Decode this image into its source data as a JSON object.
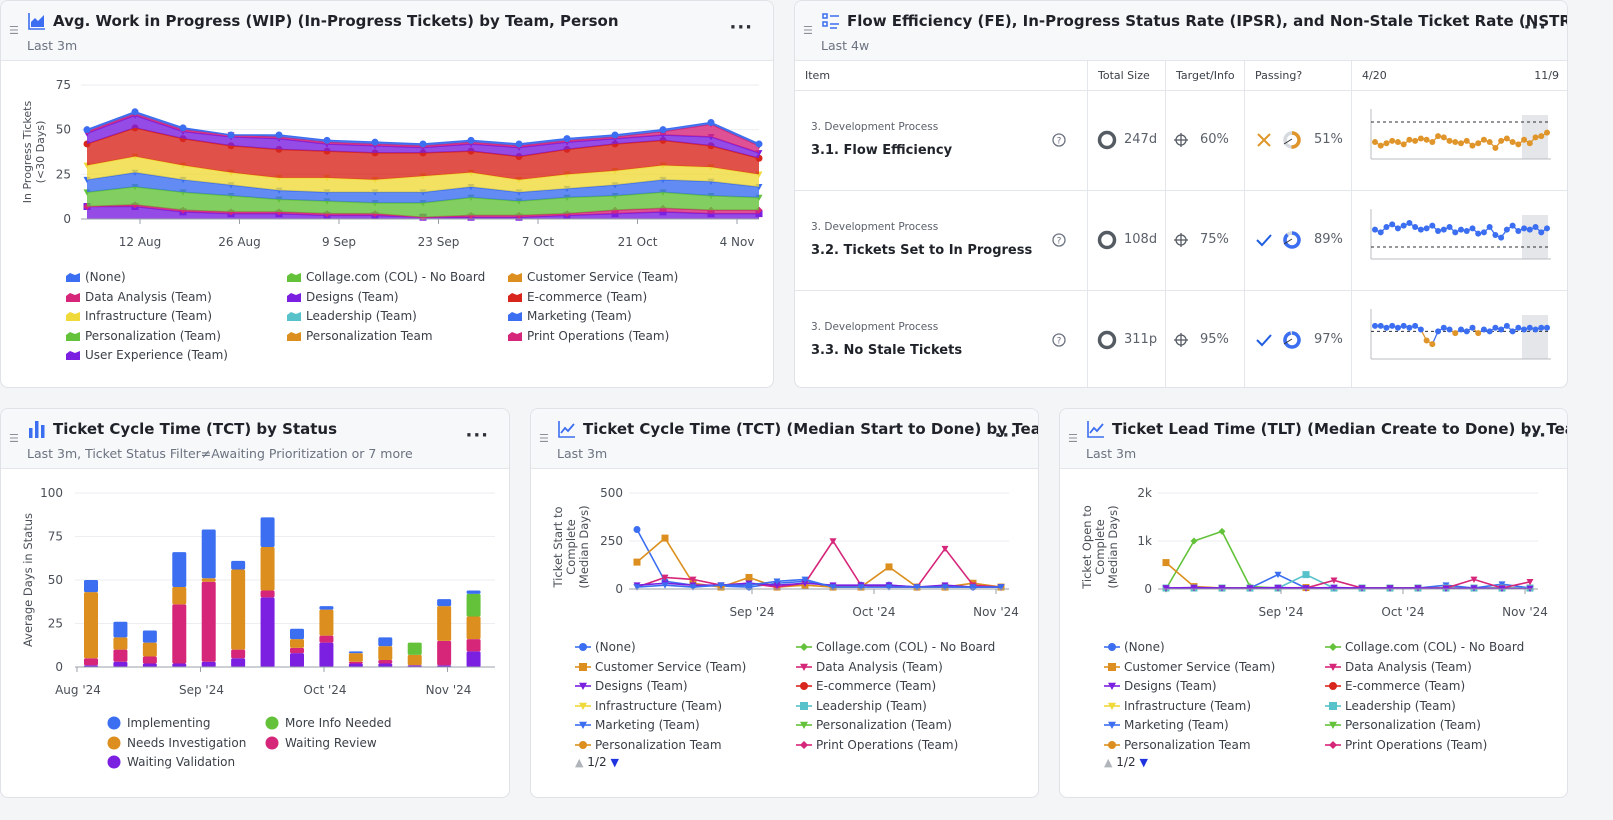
{
  "wip": {
    "title": "Avg. Work in Progress (WIP) (In-Progress Tickets) by Team, Person",
    "subtitle": "Last 3m",
    "legend": [
      "(None)",
      "Collage.com (COL) - No Board",
      "Customer Service (Team)",
      "Data Analysis (Team)",
      "Designs (Team)",
      "E-commerce (Team)",
      "Infrastructure (Team)",
      "Leadership (Team)",
      "Marketing (Team)",
      "Personalization (Team)",
      "Personalization Team",
      "Print Operations (Team)",
      "User Experience (Team)"
    ]
  },
  "scorecard": {
    "title": "Flow Efficiency (FE), In-Progress Status Rate (IPSR), and Non-Stale Ticket Rate (NSTR) Scorecard",
    "subtitle": "Last 4w",
    "headers": {
      "item": "Item",
      "total": "Total Size",
      "target": "Target/Info",
      "passing": "Passing?",
      "start": "4/20",
      "end": "11/9"
    },
    "rows": [
      {
        "category": "3. Development Process",
        "name": "3.1. Flow Efficiency",
        "total": "247d",
        "target": "60%",
        "passing": "51%",
        "pass": false,
        "color": "#e0952b"
      },
      {
        "category": "3. Development Process",
        "name": "3.2. Tickets Set to In Progress",
        "total": "108d",
        "target": "75%",
        "passing": "89%",
        "pass": true,
        "color": "#3b6ef0"
      },
      {
        "category": "3. Development Process",
        "name": "3.3. No Stale Tickets",
        "total": "311p",
        "target": "95%",
        "passing": "97%",
        "pass": true,
        "color": "#3b6ef0"
      }
    ]
  },
  "tct_status": {
    "title": "Ticket Cycle Time (TCT) by Status",
    "subtitle": "Last 3m, Ticket Status Filter≠Awaiting Prioritization or 7 more",
    "legend": [
      "Implementing",
      "More Info Needed",
      "Needs Investigation",
      "Waiting Review",
      "Waiting Validation"
    ]
  },
  "tct_team": {
    "title": "Ticket Cycle Time (TCT) (Median Start to Done) by Team",
    "subtitle": "Last 3m",
    "legend": [
      "(None)",
      "Collage.com (COL) - No Board",
      "Customer Service (Team)",
      "Data Analysis (Team)",
      "Designs (Team)",
      "E-commerce (Team)",
      "Infrastructure (Team)",
      "Leadership (Team)",
      "Marketing (Team)",
      "Personalization (Team)",
      "Personalization Team",
      "Print Operations (Team)"
    ],
    "pager": "1/2"
  },
  "tlt_team": {
    "title": "Ticket Lead Time (TLT) (Median Create to Done) by Team",
    "subtitle": "Last 3m",
    "legend": [
      "(None)",
      "Collage.com (COL) - No Board",
      "Customer Service (Team)",
      "Data Analysis (Team)",
      "Designs (Team)",
      "E-commerce (Team)",
      "Infrastructure (Team)",
      "Leadership (Team)",
      "Marketing (Team)",
      "Personalization (Team)",
      "Personalization Team",
      "Print Operations (Team)"
    ],
    "pager": "1/2"
  },
  "colors": {
    "(None)": "#3b6ef0",
    "Collage.com (COL) - No Board": "#63c23a",
    "Customer Service (Team)": "#dc8f1e",
    "Data Analysis (Team)": "#d6267a",
    "Designs (Team)": "#7b1fe0",
    "E-commerce (Team)": "#d8261c",
    "Infrastructure (Team)": "#f0d93a",
    "Leadership (Team)": "#57c2c9",
    "Marketing (Team)": "#3b6ef0",
    "Personalization (Team)": "#63c23a",
    "Personalization Team": "#dc8f1e",
    "Print Operations (Team)": "#d6267a",
    "User Experience (Team)": "#7b1fe0",
    "Implementing": "#3b6ef0",
    "More Info Needed": "#63c23a",
    "Needs Investigation": "#dc8f1e",
    "Waiting Review": "#d6267a",
    "Waiting Validation": "#7b1fe0"
  },
  "chart_data": [
    {
      "type": "area",
      "title": "Avg. Work in Progress (WIP) (In-Progress Tickets) by Team, Person",
      "ylabel": "In Progress Tickets (<30 Days)",
      "ylim": [
        0,
        75
      ],
      "yticks": [
        0,
        25,
        50,
        75
      ],
      "x": [
        "30 Jul",
        "6 Aug",
        "13 Aug",
        "20 Aug",
        "27 Aug",
        "3 Sep",
        "10 Sep",
        "17 Sep",
        "24 Sep",
        "1 Oct",
        "8 Oct",
        "15 Oct",
        "22 Oct",
        "29 Oct",
        "5 Nov"
      ],
      "xticks": [
        "12 Aug",
        "26 Aug",
        "9 Sep",
        "23 Sep",
        "7 Oct",
        "21 Oct",
        "4 Nov"
      ],
      "series": [
        {
          "name": "User Experience (Team)",
          "values": [
            7,
            7,
            4,
            3,
            3,
            2,
            2,
            1,
            1,
            1,
            2,
            3,
            4,
            3,
            3
          ]
        },
        {
          "name": "Print Operations (Team)",
          "values": [
            0,
            1,
            1,
            1,
            1,
            1,
            1,
            0,
            1,
            1,
            1,
            2,
            2,
            2,
            2
          ]
        },
        {
          "name": "Personalization (Team)",
          "values": [
            8,
            10,
            10,
            9,
            7,
            7,
            6,
            8,
            10,
            8,
            9,
            8,
            9,
            8,
            7
          ]
        },
        {
          "name": "Marketing (Team)",
          "values": [
            7,
            8,
            7,
            6,
            5,
            5,
            6,
            6,
            6,
            5,
            5,
            6,
            7,
            8,
            6
          ]
        },
        {
          "name": "Infrastructure (Team)",
          "values": [
            8,
            9,
            8,
            7,
            7,
            8,
            7,
            9,
            8,
            7,
            8,
            8,
            8,
            8,
            7
          ]
        },
        {
          "name": "E-commerce (Team)",
          "values": [
            12,
            16,
            15,
            15,
            16,
            15,
            15,
            13,
            12,
            13,
            14,
            15,
            14,
            12,
            9
          ]
        },
        {
          "name": "Designs (Team)",
          "values": [
            6,
            7,
            4,
            5,
            6,
            4,
            4,
            3,
            4,
            5,
            4,
            3,
            3,
            5,
            3
          ]
        },
        {
          "name": "Data Analysis (Team)",
          "values": [
            1,
            1,
            1,
            1,
            1,
            1,
            1,
            1,
            1,
            1,
            1,
            1,
            2,
            7,
            4
          ]
        },
        {
          "name": "(None)",
          "values": [
            1,
            1,
            1,
            0,
            1,
            1,
            1,
            1,
            1,
            1,
            1,
            1,
            1,
            1,
            1
          ]
        }
      ]
    },
    {
      "type": "line",
      "title": "3.1. Flow Efficiency",
      "values": [
        0.43,
        0.4,
        0.42,
        0.44,
        0.43,
        0.41,
        0.45,
        0.44,
        0.46,
        0.45,
        0.43,
        0.48,
        0.47,
        0.44,
        0.43,
        0.42,
        0.44,
        0.4,
        0.42,
        0.45,
        0.43,
        0.38,
        0.44,
        0.46,
        0.43,
        0.41,
        0.45,
        0.42,
        0.47,
        0.48,
        0.51
      ],
      "target": 0.6
    },
    {
      "type": "line",
      "title": "3.2. Tickets Set to In Progress",
      "values": [
        0.88,
        0.86,
        0.9,
        0.92,
        0.89,
        0.91,
        0.93,
        0.9,
        0.88,
        0.89,
        0.91,
        0.87,
        0.88,
        0.9,
        0.86,
        0.88,
        0.87,
        0.89,
        0.85,
        0.86,
        0.9,
        0.84,
        0.82,
        0.88,
        0.91,
        0.87,
        0.89,
        0.88,
        0.9,
        0.86,
        0.89
      ],
      "target": 0.75
    },
    {
      "type": "line",
      "title": "3.3. No Stale Tickets",
      "values": [
        0.98,
        0.98,
        0.97,
        0.98,
        0.97,
        0.98,
        0.97,
        0.98,
        0.96,
        0.9,
        0.88,
        0.95,
        0.97,
        0.96,
        0.94,
        0.96,
        0.95,
        0.97,
        0.94,
        0.96,
        0.95,
        0.97,
        0.96,
        0.98,
        0.95,
        0.97,
        0.96,
        0.97,
        0.96,
        0.97,
        0.97
      ],
      "target": 0.95
    },
    {
      "type": "bar",
      "title": "Ticket Cycle Time (TCT) by Status",
      "ylabel": "Average Days in Status",
      "ylim": [
        0,
        100
      ],
      "yticks": [
        0,
        25,
        50,
        75,
        100
      ],
      "xticks": [
        "Aug '24",
        "Sep '24",
        "Oct '24",
        "Nov '24"
      ],
      "stack_order": [
        "Waiting Validation",
        "Waiting Review",
        "Needs Investigation",
        "More Info Needed",
        "Implementing"
      ],
      "bars": [
        {
          "Waiting Validation": 1,
          "Waiting Review": 4,
          "Needs Investigation": 38,
          "More Info Needed": 0,
          "Implementing": 7
        },
        {
          "Waiting Validation": 3,
          "Waiting Review": 7,
          "Needs Investigation": 7,
          "More Info Needed": 0,
          "Implementing": 9
        },
        {
          "Waiting Validation": 2,
          "Waiting Review": 4,
          "Needs Investigation": 8,
          "More Info Needed": 0,
          "Implementing": 7
        },
        {
          "Waiting Validation": 2,
          "Waiting Review": 34,
          "Needs Investigation": 10,
          "More Info Needed": 0,
          "Implementing": 20
        },
        {
          "Waiting Validation": 3,
          "Waiting Review": 46,
          "Needs Investigation": 2,
          "More Info Needed": 0,
          "Implementing": 28
        },
        {
          "Waiting Validation": 5,
          "Waiting Review": 5,
          "Needs Investigation": 46,
          "More Info Needed": 0,
          "Implementing": 5
        },
        {
          "Waiting Validation": 40,
          "Waiting Review": 4,
          "Needs Investigation": 25,
          "More Info Needed": 0,
          "Implementing": 17
        },
        {
          "Waiting Validation": 8,
          "Waiting Review": 3,
          "Needs Investigation": 5,
          "More Info Needed": 0,
          "Implementing": 6
        },
        {
          "Waiting Validation": 14,
          "Waiting Review": 4,
          "Needs Investigation": 15,
          "More Info Needed": 0,
          "Implementing": 2
        },
        {
          "Waiting Validation": 2,
          "Waiting Review": 1,
          "Needs Investigation": 5,
          "More Info Needed": 0,
          "Implementing": 1
        },
        {
          "Waiting Validation": 2,
          "Waiting Review": 2,
          "Needs Investigation": 8,
          "More Info Needed": 0,
          "Implementing": 5
        },
        {
          "Waiting Validation": 1,
          "Waiting Review": 0,
          "Needs Investigation": 6,
          "More Info Needed": 7,
          "Implementing": 0
        },
        {
          "Waiting Validation": 1,
          "Waiting Review": 14,
          "Needs Investigation": 20,
          "More Info Needed": 0,
          "Implementing": 4
        },
        {
          "Waiting Validation": 9,
          "Waiting Review": 7,
          "Needs Investigation": 13,
          "More Info Needed": 13,
          "Implementing": 2
        }
      ]
    },
    {
      "type": "line",
      "title": "Ticket Cycle Time (TCT) (Median Start to Done) by Team",
      "ylabel": "Ticket Start to Complete (Median Days)",
      "ylim": [
        0,
        500
      ],
      "yticks": [
        0,
        250,
        500
      ],
      "xticks": [
        "Sep '24",
        "Oct '24",
        "Nov '24"
      ],
      "x": [
        "Aug 5",
        "Aug 12",
        "Aug 19",
        "Aug 26",
        "Sep 2",
        "Sep 9",
        "Sep 16",
        "Sep 23",
        "Sep 30",
        "Oct 7",
        "Oct 14",
        "Oct 21",
        "Oct 28",
        "Nov 4"
      ],
      "series": [
        {
          "name": "(None)",
          "values": [
            310,
            40,
            20,
            15,
            10,
            30,
            40,
            10,
            20,
            20,
            10,
            10,
            10,
            10
          ]
        },
        {
          "name": "Customer Service (Team)",
          "values": [
            140,
            265,
            30,
            10,
            60,
            10,
            20,
            10,
            10,
            115,
            10,
            10,
            30,
            10
          ]
        },
        {
          "name": "Data Analysis (Team)",
          "values": [
            10,
            60,
            50,
            20,
            30,
            10,
            30,
            250,
            20,
            10,
            10,
            210,
            20,
            10
          ]
        },
        {
          "name": "Designs (Team)",
          "values": [
            20,
            30,
            20,
            20,
            30,
            20,
            30,
            20,
            20,
            20,
            10,
            20,
            10,
            10
          ]
        },
        {
          "name": "Marketing (Team)",
          "values": [
            10,
            20,
            10,
            20,
            20,
            40,
            50,
            10,
            10,
            10,
            10,
            10,
            10,
            10
          ]
        }
      ]
    },
    {
      "type": "line",
      "title": "Ticket Lead Time (TLT) (Median Create to Done) by Team",
      "ylabel": "Ticket Open to Complete (Median Days)",
      "ylim": [
        0,
        2000
      ],
      "yticks": [
        0,
        1000,
        2000
      ],
      "ytick_labels": [
        "0",
        "1k",
        "2k"
      ],
      "xticks": [
        "Sep '24",
        "Oct '24",
        "Nov '24"
      ],
      "x": [
        "Aug 5",
        "Aug 12",
        "Aug 19",
        "Aug 26",
        "Sep 2",
        "Sep 9",
        "Sep 16",
        "Sep 23",
        "Sep 30",
        "Oct 7",
        "Oct 14",
        "Oct 21",
        "Oct 28",
        "Nov 4"
      ],
      "series": [
        {
          "name": "Collage.com (COL) - No Board",
          "values": [
            0,
            1000,
            1200,
            50,
            20,
            20,
            20,
            20,
            20,
            20,
            20,
            20,
            20,
            20
          ]
        },
        {
          "name": "Customer Service (Team)",
          "values": [
            550,
            50,
            20,
            20,
            20,
            30,
            20,
            20,
            20,
            20,
            20,
            20,
            20,
            20
          ]
        },
        {
          "name": "Marketing (Team)",
          "values": [
            20,
            20,
            20,
            20,
            300,
            20,
            20,
            20,
            20,
            20,
            80,
            20,
            100,
            20
          ]
        },
        {
          "name": "Leadership (Team)",
          "values": [
            20,
            20,
            20,
            20,
            20,
            300,
            20,
            20,
            20,
            20,
            20,
            20,
            20,
            20
          ]
        },
        {
          "name": "Data Analysis (Team)",
          "values": [
            20,
            20,
            20,
            20,
            20,
            20,
            180,
            20,
            20,
            20,
            20,
            200,
            20,
            150
          ]
        },
        {
          "name": "Designs (Team)",
          "values": [
            20,
            30,
            20,
            20,
            30,
            20,
            30,
            20,
            20,
            20,
            10,
            20,
            10,
            10
          ]
        }
      ]
    }
  ]
}
